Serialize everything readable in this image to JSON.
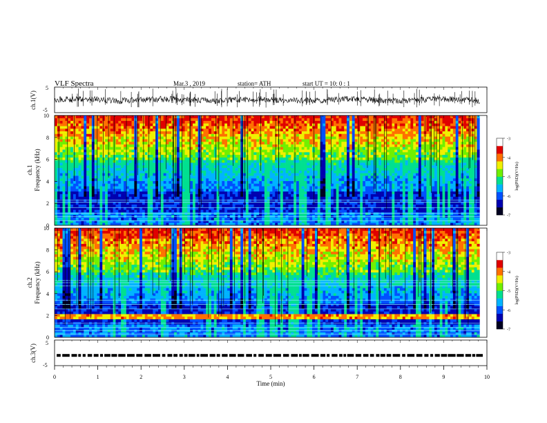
{
  "header": {
    "title": "VLF  Spectra",
    "date": "Mar.3  , 2019",
    "station": "station= ATH",
    "start_ut": "start  UT  =   10: 0   : 1"
  },
  "chart_data": [
    {
      "type": "line",
      "id": "ch1-waveform",
      "ylabel": "ch.1(V)",
      "ylim": [
        -5,
        5
      ],
      "yticks": [
        -5,
        5
      ],
      "xlim": [
        0,
        10
      ],
      "data_end_min": 9.83,
      "baseline_v": 0,
      "color": "#000000"
    },
    {
      "type": "heatmap",
      "id": "ch1-spectrogram",
      "channel_label": "ch.1",
      "ylabel": "Frequency  (kHz)",
      "ylim": [
        0,
        10
      ],
      "yticks": [
        0,
        2,
        4,
        6,
        8,
        10
      ],
      "xlim": [
        0,
        10
      ],
      "data_end_min": 9.83,
      "colorbar": {
        "label": "log(PSD)(V²/Hz)",
        "range": [
          -7,
          -3
        ],
        "ticks": [
          -3,
          -4,
          -5,
          -6,
          -7
        ]
      }
    },
    {
      "type": "heatmap",
      "id": "ch2-spectrogram",
      "channel_label": "ch.2",
      "ylabel": "Frequency  (kHz)",
      "ylim": [
        0,
        10
      ],
      "yticks": [
        0,
        2,
        4,
        6,
        8,
        10
      ],
      "xlim": [
        0,
        10
      ],
      "data_end_min": 9.83,
      "colorbar": {
        "label": "log(PSD)(V²/Hz)",
        "range": [
          -7,
          -3
        ],
        "ticks": [
          -3,
          -4,
          -5,
          -6,
          -7
        ]
      }
    },
    {
      "type": "scatter",
      "id": "ch3-signal",
      "ylabel": "ch.3(V)",
      "ylim": [
        -5,
        5
      ],
      "yticks": [
        -5,
        5
      ],
      "xlim": [
        0,
        10
      ],
      "data_end_min": 9.83,
      "level_v": -1,
      "color": "#000000"
    }
  ],
  "x_axis": {
    "label": "Time  (min)",
    "ticks": [
      "0",
      "1",
      "2",
      "3",
      "4",
      "5",
      "6",
      "7",
      "8",
      "9",
      "10"
    ]
  },
  "colorscale": [
    "#000020",
    "#0000b0",
    "#0050ff",
    "#00b4ff",
    "#00e090",
    "#70f000",
    "#f0f000",
    "#ff7000",
    "#e00000",
    "#ffffff"
  ]
}
